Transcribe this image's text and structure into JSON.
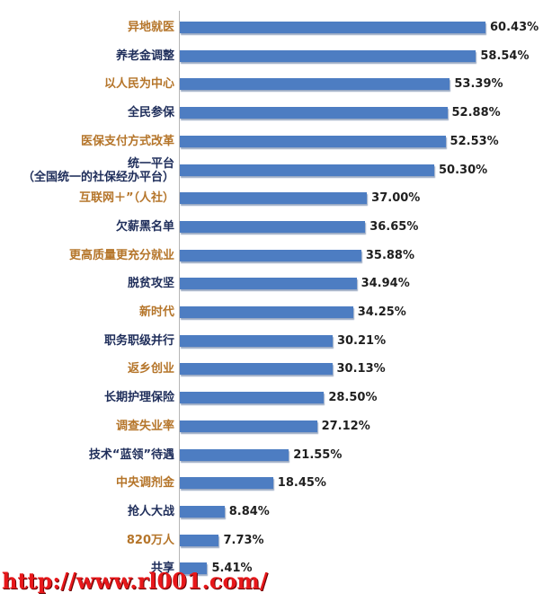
{
  "chart_data": {
    "type": "bar",
    "orientation": "horizontal",
    "categories": [
      "异地就医",
      "养老金调整",
      "以人民为中心",
      "全民参保",
      "医保支付方式改革",
      "统一平台\n（全国统一的社保经办平台）",
      "互联网＋”（人社）",
      "欠薪黑名单",
      "更高质量更充分就业",
      "脱贫攻坚",
      "新时代",
      "职务职级并行",
      "返乡创业",
      "长期护理保险",
      "调查失业率",
      "技术“蓝领”待遇",
      "中央调剂金",
      "抢人大战",
      "820万人",
      "共享"
    ],
    "values": [
      60.43,
      58.54,
      53.39,
      52.88,
      52.53,
      50.3,
      37.0,
      36.65,
      35.88,
      34.94,
      34.25,
      30.21,
      30.13,
      28.5,
      27.12,
      21.55,
      18.45,
      8.84,
      7.73,
      5.41
    ],
    "value_labels": [
      "60.43%",
      "58.54%",
      "53.39%",
      "52.88%",
      "52.53%",
      "50.30%",
      "37.00%",
      "36.65%",
      "35.88%",
      "34.94%",
      "34.25%",
      "30.21%",
      "30.13%",
      "28.50%",
      "27.12%",
      "21.55%",
      "18.45%",
      "8.84%",
      "7.73%",
      "5.41%"
    ],
    "label_colors": [
      "#b5752a",
      "#1e2d5a",
      "#b5752a",
      "#1e2d5a",
      "#b5752a",
      "#1e2d5a",
      "#b5752a",
      "#1e2d5a",
      "#b5752a",
      "#1e2d5a",
      "#b5752a",
      "#1e2d5a",
      "#b5752a",
      "#1e2d5a",
      "#b5752a",
      "#1e2d5a",
      "#b5752a",
      "#1e2d5a",
      "#b5752a",
      "#1e2d5a"
    ],
    "bar_color": "#4d7dc2",
    "grid": false,
    "xlim": [
      0,
      60.43
    ]
  },
  "watermark": {
    "text": "http://www.rl001.com/",
    "color": "#e8181b"
  }
}
